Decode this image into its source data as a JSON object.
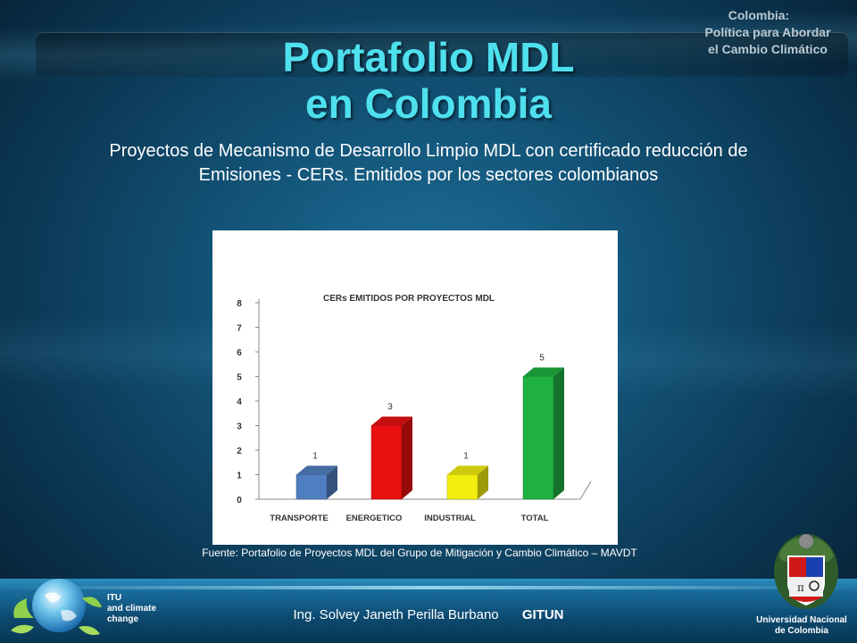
{
  "slide": {
    "title_line1": "Portafolio MDL",
    "title_line2": "en Colombia",
    "corner_line1": "Colombia:",
    "corner_line2": "Política para Abordar",
    "corner_line3": "el Cambio Climático",
    "subtitle_line1": "Proyectos de Mecanismo de Desarrollo Limpio MDL con certificado reducción de",
    "subtitle_line2": "Emisiones - CERs. Emitidos por los sectores colombianos",
    "source": "Fuente: Portafolio de  Proyectos MDL del Grupo de Mitigación y Cambio Climático – MAVDT",
    "author": "Ing. Solvey Janeth Perilla Burbano",
    "group": "GITUN",
    "itu_line1": "ITU",
    "itu_line2": "and climate",
    "itu_line3": "change",
    "university_line1": "Universidad Nacional",
    "university_line2": "de Colombia"
  },
  "chart_data": {
    "type": "bar",
    "title": "CERs EMITIDOS POR PROYECTOS MDL",
    "categories": [
      "TRANSPORTE",
      "ENERGETICO",
      "INDUSTRIAL",
      "TOTAL"
    ],
    "values": [
      1,
      3,
      1,
      5
    ],
    "colors": [
      "#4f7fc0",
      "#e81010",
      "#f2ee10",
      "#1eb040"
    ],
    "ylim": [
      0,
      8
    ],
    "yticks": [
      "0",
      "1",
      "2",
      "3",
      "4",
      "5",
      "6",
      "7",
      "8"
    ],
    "style": "3d-bars"
  }
}
